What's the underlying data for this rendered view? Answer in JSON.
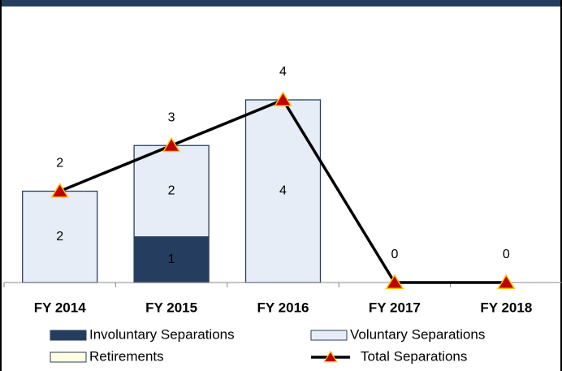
{
  "chart_data": {
    "type": "bar",
    "stacked": true,
    "categories": [
      "FY 2014",
      "FY 2015",
      "FY 2016",
      "FY 2017",
      "FY 2018"
    ],
    "series": [
      {
        "name": "Involuntary Separations",
        "color": "#253e5f",
        "values": [
          0,
          1,
          0,
          0,
          0
        ]
      },
      {
        "name": "Voluntary Separations",
        "color": "#e6edf7",
        "values": [
          2,
          2,
          4,
          0,
          0
        ]
      },
      {
        "name": "Retirements",
        "color": "#fefee0",
        "values": [
          0,
          0,
          0,
          0,
          0
        ]
      },
      {
        "name": "Total Separations",
        "type": "line",
        "color": "#000000",
        "marker_color": "#c00000",
        "marker_edge": "#ffc000",
        "values": [
          2,
          3,
          4,
          0,
          0
        ]
      }
    ],
    "ylim": [
      0,
      5
    ],
    "data_labels": true,
    "legend": "bottom"
  }
}
